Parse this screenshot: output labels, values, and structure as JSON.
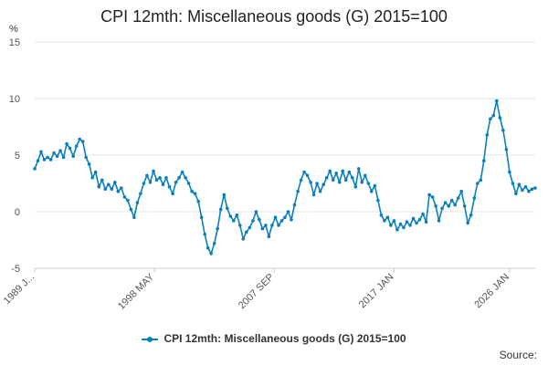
{
  "chart_data": {
    "type": "line",
    "title": "CPI 12mth: Miscellaneous goods (G) 2015=100",
    "ylabel": "%",
    "xlabel": "",
    "ylim": [
      -5,
      15
    ],
    "yticks": [
      -5,
      0,
      5,
      10,
      15
    ],
    "xticks": [
      {
        "label": "1989 J...",
        "x": 1989.0
      },
      {
        "label": "1998 MAY",
        "x": 1998.33
      },
      {
        "label": "2007 SEP",
        "x": 2007.67
      },
      {
        "label": "2017 JAN",
        "x": 2017.0
      },
      {
        "label": "2026 JAN",
        "x": 2026.0
      }
    ],
    "xlim": [
      1989.0,
      2026.0
    ],
    "grid": "horizontal",
    "legend": "bottom-center",
    "series": [
      {
        "name": "CPI 12mth: Miscellaneous goods (G) 2015=100",
        "color": "#0a7fbe",
        "points": [
          [
            1989.0,
            3.8
          ],
          [
            1989.25,
            4.5
          ],
          [
            1989.5,
            5.3
          ],
          [
            1989.75,
            4.6
          ],
          [
            1990.0,
            4.8
          ],
          [
            1990.25,
            4.6
          ],
          [
            1990.5,
            5.2
          ],
          [
            1990.75,
            4.9
          ],
          [
            1991.0,
            5.4
          ],
          [
            1991.25,
            4.8
          ],
          [
            1991.5,
            6.0
          ],
          [
            1991.75,
            5.6
          ],
          [
            1992.0,
            4.9
          ],
          [
            1992.25,
            5.8
          ],
          [
            1992.5,
            6.4
          ],
          [
            1992.75,
            6.2
          ],
          [
            1993.0,
            4.8
          ],
          [
            1993.25,
            4.2
          ],
          [
            1993.5,
            3.0
          ],
          [
            1993.75,
            3.5
          ],
          [
            1994.0,
            2.2
          ],
          [
            1994.25,
            2.8
          ],
          [
            1994.5,
            2.0
          ],
          [
            1994.75,
            2.4
          ],
          [
            1995.0,
            2.0
          ],
          [
            1995.25,
            2.6
          ],
          [
            1995.5,
            1.8
          ],
          [
            1995.75,
            2.1
          ],
          [
            1996.0,
            1.3
          ],
          [
            1996.25,
            1.0
          ],
          [
            1996.5,
            0.2
          ],
          [
            1996.75,
            -0.5
          ],
          [
            1997.0,
            0.8
          ],
          [
            1997.25,
            1.6
          ],
          [
            1997.5,
            2.5
          ],
          [
            1997.75,
            3.2
          ],
          [
            1998.0,
            2.6
          ],
          [
            1998.25,
            3.6
          ],
          [
            1998.5,
            2.8
          ],
          [
            1998.75,
            3.0
          ],
          [
            1999.0,
            2.4
          ],
          [
            1999.25,
            3.0
          ],
          [
            1999.5,
            2.2
          ],
          [
            1999.75,
            1.6
          ],
          [
            2000.0,
            2.6
          ],
          [
            2000.25,
            3.0
          ],
          [
            2000.5,
            3.5
          ],
          [
            2000.75,
            3.0
          ],
          [
            2001.0,
            2.5
          ],
          [
            2001.25,
            1.8
          ],
          [
            2001.5,
            1.6
          ],
          [
            2001.75,
            0.9
          ],
          [
            2002.0,
            -0.5
          ],
          [
            2002.25,
            -2.0
          ],
          [
            2002.5,
            -3.2
          ],
          [
            2002.75,
            -3.7
          ],
          [
            2003.0,
            -2.8
          ],
          [
            2003.25,
            -1.5
          ],
          [
            2003.5,
            0.2
          ],
          [
            2003.75,
            1.5
          ],
          [
            2004.0,
            0.3
          ],
          [
            2004.25,
            -0.4
          ],
          [
            2004.5,
            -0.8
          ],
          [
            2004.75,
            -0.3
          ],
          [
            2005.0,
            -1.2
          ],
          [
            2005.25,
            -2.4
          ],
          [
            2005.5,
            -1.8
          ],
          [
            2005.75,
            -1.4
          ],
          [
            2006.0,
            -0.8
          ],
          [
            2006.25,
            0.0
          ],
          [
            2006.5,
            -0.7
          ],
          [
            2006.75,
            -1.5
          ],
          [
            2007.0,
            -1.2
          ],
          [
            2007.25,
            -2.2
          ],
          [
            2007.5,
            -1.2
          ],
          [
            2007.75,
            -0.5
          ],
          [
            2008.0,
            -1.2
          ],
          [
            2008.25,
            -0.8
          ],
          [
            2008.5,
            -0.5
          ],
          [
            2008.75,
            0.0
          ],
          [
            2009.0,
            -0.7
          ],
          [
            2009.25,
            0.6
          ],
          [
            2009.5,
            1.8
          ],
          [
            2009.75,
            2.8
          ],
          [
            2010.0,
            3.5
          ],
          [
            2010.25,
            3.2
          ],
          [
            2010.5,
            2.6
          ],
          [
            2010.75,
            1.5
          ],
          [
            2011.0,
            2.5
          ],
          [
            2011.25,
            1.8
          ],
          [
            2011.5,
            2.4
          ],
          [
            2011.75,
            3.0
          ],
          [
            2012.0,
            3.6
          ],
          [
            2012.25,
            2.8
          ],
          [
            2012.5,
            3.4
          ],
          [
            2012.75,
            2.6
          ],
          [
            2013.0,
            3.6
          ],
          [
            2013.25,
            2.8
          ],
          [
            2013.5,
            3.5
          ],
          [
            2013.75,
            3.0
          ],
          [
            2014.0,
            2.2
          ],
          [
            2014.25,
            3.8
          ],
          [
            2014.5,
            2.6
          ],
          [
            2014.75,
            3.2
          ],
          [
            2015.0,
            2.5
          ],
          [
            2015.25,
            1.8
          ],
          [
            2015.5,
            2.3
          ],
          [
            2015.75,
            1.0
          ],
          [
            2016.0,
            -0.3
          ],
          [
            2016.25,
            -0.8
          ],
          [
            2016.5,
            -0.5
          ],
          [
            2016.75,
            -1.2
          ],
          [
            2017.0,
            -0.8
          ],
          [
            2017.25,
            -1.6
          ],
          [
            2017.5,
            -1.1
          ],
          [
            2017.75,
            -1.4
          ],
          [
            2018.0,
            -0.9
          ],
          [
            2018.25,
            -1.2
          ],
          [
            2018.5,
            -0.6
          ],
          [
            2018.75,
            -1.0
          ],
          [
            2019.0,
            -0.7
          ],
          [
            2019.25,
            -0.2
          ],
          [
            2019.5,
            -0.9
          ],
          [
            2019.75,
            1.5
          ],
          [
            2020.0,
            1.3
          ],
          [
            2020.25,
            0.5
          ],
          [
            2020.5,
            -0.8
          ],
          [
            2020.75,
            0.3
          ],
          [
            2021.0,
            0.8
          ],
          [
            2021.25,
            0.5
          ],
          [
            2021.5,
            1.0
          ],
          [
            2021.75,
            0.6
          ],
          [
            2022.0,
            1.2
          ],
          [
            2022.25,
            1.8
          ],
          [
            2022.5,
            0.5
          ],
          [
            2022.75,
            -1.0
          ],
          [
            2023.0,
            -0.3
          ],
          [
            2023.25,
            1.2
          ],
          [
            2023.5,
            2.5
          ],
          [
            2023.75,
            2.8
          ],
          [
            2024.0,
            4.5
          ],
          [
            2024.25,
            6.8
          ],
          [
            2024.5,
            8.2
          ],
          [
            2024.75,
            8.5
          ],
          [
            2025.0,
            9.8
          ],
          [
            2025.25,
            8.3
          ],
          [
            2025.5,
            7.2
          ],
          [
            2025.75,
            5.5
          ],
          [
            2026.0,
            3.5
          ],
          [
            2026.25,
            2.5
          ],
          [
            2026.5,
            1.6
          ],
          [
            2026.75,
            2.4
          ],
          [
            2027.0,
            1.9
          ],
          [
            2027.25,
            2.2
          ],
          [
            2027.5,
            1.8
          ],
          [
            2027.75,
            2.0
          ],
          [
            2028.0,
            2.1
          ]
        ]
      }
    ]
  },
  "source_label": "Source:"
}
